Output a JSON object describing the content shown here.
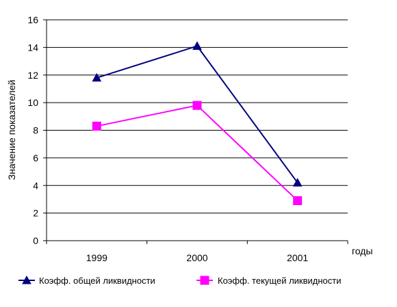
{
  "chart_data": {
    "type": "line",
    "categories": [
      "1999",
      "2000",
      "2001"
    ],
    "series": [
      {
        "name": "Коэфф. общей ликвидности",
        "values": [
          11.8,
          14.1,
          4.2
        ],
        "color": "#000080",
        "marker": "triangle"
      },
      {
        "name": "Коэфф. текущей ликвидности",
        "values": [
          8.3,
          9.8,
          2.9
        ],
        "color": "#FF00FF",
        "marker": "square"
      }
    ],
    "xlabel": "годы",
    "ylabel": "Значение показателей",
    "ylim": [
      0,
      16
    ],
    "yticks": [
      "0",
      "2",
      "4",
      "6",
      "8",
      "10",
      "12",
      "14",
      "16"
    ],
    "grid": true,
    "legend_position": "bottom"
  }
}
